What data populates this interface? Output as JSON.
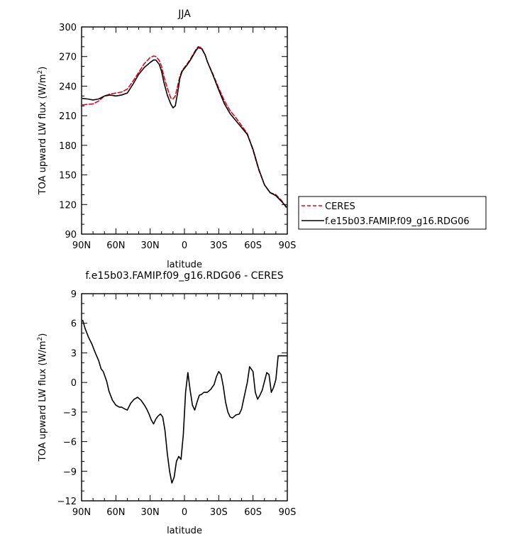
{
  "chart_data": [
    {
      "type": "line",
      "title": "JJA",
      "xlabel": "latitude",
      "ylabel_main": "TOA upward LW flux (W/m",
      "ylabel_sup": "2",
      "ylabel_tail": ")",
      "xlim": [
        90,
        -90
      ],
      "ylim": [
        90,
        300
      ],
      "x_ticks": [
        90,
        60,
        30,
        0,
        -30,
        -60,
        -90
      ],
      "x_tick_labels": [
        "90N",
        "60N",
        "30N",
        "0",
        "30S",
        "60S",
        "90S"
      ],
      "y_ticks": [
        90,
        120,
        150,
        180,
        210,
        240,
        270,
        300
      ],
      "y_tick_labels": [
        "90",
        "120",
        "150",
        "180",
        "210",
        "240",
        "270",
        "300"
      ],
      "legend_position": "right",
      "grid": false,
      "series": [
        {
          "name": "CERES",
          "color": "#e8001c",
          "dash": "dashed",
          "x": [
            89,
            85,
            80,
            75,
            70,
            65,
            60,
            55,
            50,
            45,
            40,
            35,
            30,
            27,
            25,
            22,
            20,
            18,
            15,
            12,
            10,
            8,
            6,
            4,
            2,
            0,
            -2,
            -5,
            -8,
            -10,
            -12,
            -15,
            -18,
            -20,
            -25,
            -30,
            -35,
            -40,
            -45,
            -50,
            -55,
            -60,
            -65,
            -70,
            -75,
            -80,
            -85,
            -89
          ],
          "values": [
            221,
            221.5,
            222,
            225,
            230,
            232,
            233,
            234,
            237,
            245,
            254,
            263,
            269,
            270.5,
            270,
            266,
            260,
            250,
            238,
            228,
            227,
            230,
            240,
            250,
            256,
            259,
            262,
            267,
            273,
            277,
            280,
            279,
            272,
            265,
            252,
            238,
            225,
            215,
            208,
            200,
            192,
            175,
            155,
            140,
            132,
            130,
            124,
            117
          ]
        },
        {
          "name": "f.e15b03.FAMIP.f09_g16.RDG06",
          "color": "#000000",
          "dash": "solid",
          "x": [
            89,
            85,
            80,
            75,
            70,
            65,
            60,
            55,
            50,
            45,
            40,
            35,
            30,
            27,
            25,
            22,
            20,
            18,
            15,
            12,
            10,
            8,
            6,
            4,
            2,
            0,
            -2,
            -5,
            -8,
            -10,
            -12,
            -15,
            -18,
            -20,
            -25,
            -30,
            -35,
            -40,
            -45,
            -50,
            -55,
            -60,
            -65,
            -70,
            -75,
            -80,
            -85,
            -89
          ],
          "values": [
            227.5,
            227,
            226,
            227,
            230,
            231,
            230,
            231,
            233,
            242,
            252,
            259,
            264,
            266.5,
            266.5,
            262,
            255,
            244,
            231,
            222,
            218,
            220,
            233,
            248,
            255,
            258,
            261,
            266,
            272,
            276,
            279,
            278,
            272,
            265,
            251,
            236,
            222,
            212,
            205,
            198,
            191,
            176,
            156,
            140,
            132,
            129,
            123,
            118
          ]
        }
      ]
    },
    {
      "type": "line",
      "title": "f.e15b03.FAMIP.f09_g16.RDG06 - CERES",
      "xlabel": "latitude",
      "ylabel_main": "TOA upward LW flux (W/m",
      "ylabel_sup": "2",
      "ylabel_tail": ")",
      "xlim": [
        90,
        -90
      ],
      "ylim": [
        -12,
        9
      ],
      "x_ticks": [
        90,
        60,
        30,
        0,
        -30,
        -60,
        -90
      ],
      "x_tick_labels": [
        "90N",
        "60N",
        "30N",
        "0",
        "30S",
        "60S",
        "90S"
      ],
      "y_ticks": [
        -12,
        -9,
        -6,
        -3,
        0,
        3,
        6,
        9
      ],
      "y_tick_labels": [
        "−12",
        "−9",
        "−6",
        "−3",
        "0",
        "3",
        "6",
        "9"
      ],
      "grid": false,
      "series": [
        {
          "color": "#000000",
          "dash": "solid",
          "x": [
            89,
            87,
            84,
            81,
            78,
            75,
            73,
            71,
            68,
            66,
            63,
            60,
            57,
            55,
            52,
            50,
            47,
            44,
            41,
            38,
            35,
            33,
            31,
            29,
            27,
            25,
            23,
            21,
            19,
            17,
            15,
            13,
            11,
            9,
            7,
            5,
            3,
            1,
            -1,
            -3,
            -5,
            -7,
            -9,
            -11,
            -13,
            -15,
            -17,
            -20,
            -23,
            -26,
            -28,
            -30,
            -32,
            -34,
            -36,
            -38,
            -40,
            -42,
            -45,
            -48,
            -50,
            -52,
            -55,
            -57,
            -60,
            -62,
            -64,
            -66,
            -68,
            -70,
            -72,
            -74,
            -76,
            -78,
            -80,
            -82,
            -84,
            -86,
            -88,
            -89.5
          ],
          "values": [
            6.3,
            5.5,
            4.6,
            3.9,
            3.0,
            2.2,
            1.4,
            1.1,
            0.1,
            -0.9,
            -1.8,
            -2.3,
            -2.5,
            -2.5,
            -2.7,
            -2.8,
            -2.1,
            -1.7,
            -1.5,
            -1.8,
            -2.3,
            -2.7,
            -3.2,
            -3.8,
            -4.2,
            -3.7,
            -3.4,
            -3.2,
            -3.5,
            -4.9,
            -7.2,
            -9.0,
            -10.2,
            -9.6,
            -8.0,
            -7.5,
            -7.8,
            -5.3,
            -1.0,
            1.0,
            -0.8,
            -2.3,
            -2.8,
            -2.0,
            -1.3,
            -1.2,
            -1.0,
            -1.0,
            -0.7,
            -0.2,
            0.6,
            1.1,
            0.8,
            -0.4,
            -2.0,
            -3.0,
            -3.5,
            -3.6,
            -3.3,
            -3.2,
            -2.7,
            -1.6,
            0.0,
            1.6,
            1.1,
            -1.0,
            -1.7,
            -1.3,
            -0.8,
            0.1,
            1.0,
            0.8,
            -1.0,
            -0.5,
            0.3,
            2.7,
            2.7,
            2.7,
            2.7,
            2.7
          ]
        }
      ]
    }
  ]
}
